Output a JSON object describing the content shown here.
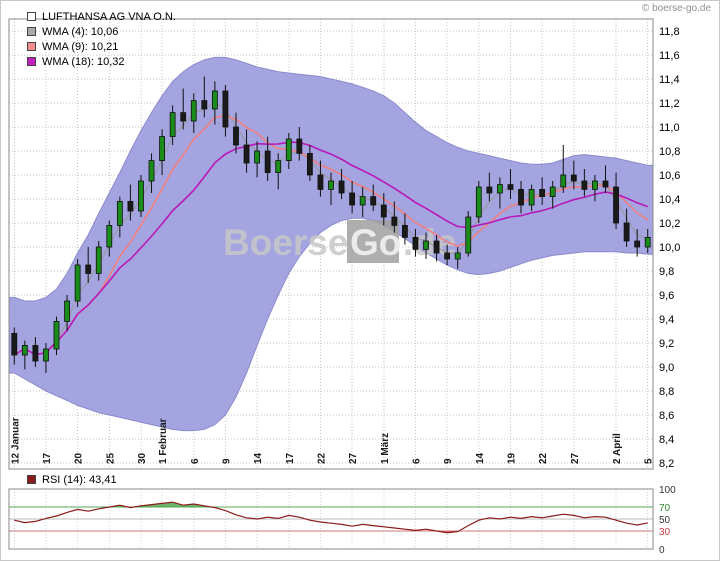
{
  "header": {
    "copyright": "© boerse-go.de"
  },
  "legend": {
    "title": "LUFTHANSA AG VNA O.N.",
    "items": [
      {
        "label": "WMA (4): 10,06",
        "color": "#a8a8a8"
      },
      {
        "label": "WMA (9): 10,21",
        "color": "#f28e8e"
      },
      {
        "label": "WMA (18): 10,32",
        "color": "#c020c0"
      }
    ]
  },
  "rsi_legend": {
    "label": "RSI (14): 43,41",
    "color": "#8b1a1a"
  },
  "watermark": {
    "pre": "Boerse",
    "box": "Go",
    "post": ".de"
  },
  "chart_data": [
    {
      "type": "candlestick",
      "title": "LUFTHANSA AG VNA O.N.",
      "ylim": [
        8.2,
        11.8
      ],
      "ytick_step": 0.2,
      "ytick_labels": [
        "11,8",
        "11,6",
        "11,4",
        "11,2",
        "11,0",
        "10,8",
        "10,6",
        "10,4",
        "10,2",
        "10,0",
        "9,8",
        "9,6",
        "9,4",
        "9,2",
        "9,0",
        "8,8",
        "8,6",
        "8,4",
        "8,2"
      ],
      "xticks": [
        {
          "i": 0,
          "label": "12 Januar"
        },
        {
          "i": 3,
          "label": "17"
        },
        {
          "i": 6,
          "label": "20"
        },
        {
          "i": 9,
          "label": "25"
        },
        {
          "i": 12,
          "label": "30"
        },
        {
          "i": 14,
          "label": "1 Februar"
        },
        {
          "i": 17,
          "label": "6"
        },
        {
          "i": 20,
          "label": "9"
        },
        {
          "i": 23,
          "label": "14"
        },
        {
          "i": 26,
          "label": "17"
        },
        {
          "i": 29,
          "label": "22"
        },
        {
          "i": 32,
          "label": "27"
        },
        {
          "i": 35,
          "label": "1 März"
        },
        {
          "i": 38,
          "label": "6"
        },
        {
          "i": 41,
          "label": "9"
        },
        {
          "i": 44,
          "label": "14"
        },
        {
          "i": 47,
          "label": "19"
        },
        {
          "i": 50,
          "label": "22"
        },
        {
          "i": 53,
          "label": "27"
        },
        {
          "i": 57,
          "label": "2 April"
        },
        {
          "i": 60,
          "label": "5"
        }
      ],
      "colors": {
        "up": "#1a8c1a",
        "down": "#1a1a1a"
      },
      "band": {
        "color": "#9a9ade",
        "edge": "#8a8ace",
        "upper": [
          9.58,
          9.55,
          9.55,
          9.58,
          9.65,
          9.78,
          9.95,
          10.1,
          10.28,
          10.45,
          10.62,
          10.8,
          10.97,
          11.12,
          11.26,
          11.38,
          11.46,
          11.52,
          11.56,
          11.58,
          11.58,
          11.56,
          11.53,
          11.5,
          11.48,
          11.46,
          11.45,
          11.44,
          11.43,
          11.42,
          11.4,
          11.38,
          11.36,
          11.33,
          11.3,
          11.26,
          11.2,
          11.12,
          11.04,
          10.97,
          10.92,
          10.87,
          10.83,
          10.8,
          10.78,
          10.76,
          10.74,
          10.72,
          10.7,
          10.69,
          10.69,
          10.7,
          10.73,
          10.76,
          10.77,
          10.76,
          10.75,
          10.74,
          10.72,
          10.7,
          10.68
        ],
        "lower": [
          8.95,
          8.9,
          8.85,
          8.8,
          8.76,
          8.72,
          8.68,
          8.65,
          8.62,
          8.6,
          8.58,
          8.56,
          8.54,
          8.52,
          8.5,
          8.48,
          8.47,
          8.47,
          8.48,
          8.52,
          8.6,
          8.75,
          8.95,
          9.18,
          9.4,
          9.6,
          9.78,
          9.92,
          10.03,
          10.12,
          10.18,
          10.22,
          10.24,
          10.24,
          10.22,
          10.18,
          10.13,
          10.07,
          10.01,
          9.95,
          9.9,
          9.85,
          9.81,
          9.78,
          9.77,
          9.78,
          9.8,
          9.83,
          9.86,
          9.89,
          9.91,
          9.93,
          9.94,
          9.95,
          9.96,
          9.96,
          9.96,
          9.96,
          9.95,
          9.95,
          9.94
        ]
      },
      "overlays": [
        {
          "name": "WMA (4)",
          "period": 4,
          "value": 10.06,
          "color": "#9a9a9a",
          "width": 1.1
        },
        {
          "name": "WMA (9)",
          "period": 9,
          "value": 10.21,
          "color": "#f08080",
          "width": 1.6
        },
        {
          "name": "WMA (18)",
          "period": 18,
          "value": 10.32,
          "color": "#b818b8",
          "width": 1.6
        }
      ],
      "candles": [
        {
          "d": "12.01",
          "o": 9.28,
          "h": 9.33,
          "l": 9.02,
          "c": 9.1
        },
        {
          "d": "13.01",
          "o": 9.1,
          "h": 9.22,
          "l": 8.98,
          "c": 9.18
        },
        {
          "d": "16.01",
          "o": 9.18,
          "h": 9.25,
          "l": 9.0,
          "c": 9.05
        },
        {
          "d": "17.01",
          "o": 9.05,
          "h": 9.2,
          "l": 8.95,
          "c": 9.15
        },
        {
          "d": "18.01",
          "o": 9.15,
          "h": 9.42,
          "l": 9.1,
          "c": 9.38
        },
        {
          "d": "19.01",
          "o": 9.38,
          "h": 9.6,
          "l": 9.3,
          "c": 9.55
        },
        {
          "d": "20.01",
          "o": 9.55,
          "h": 9.9,
          "l": 9.5,
          "c": 9.85
        },
        {
          "d": "23.01",
          "o": 9.85,
          "h": 10.0,
          "l": 9.7,
          "c": 9.78
        },
        {
          "d": "24.01",
          "o": 9.78,
          "h": 10.05,
          "l": 9.72,
          "c": 10.0
        },
        {
          "d": "25.01",
          "o": 10.0,
          "h": 10.22,
          "l": 9.92,
          "c": 10.18
        },
        {
          "d": "26.01",
          "o": 10.18,
          "h": 10.42,
          "l": 10.08,
          "c": 10.38
        },
        {
          "d": "27.01",
          "o": 10.38,
          "h": 10.52,
          "l": 10.22,
          "c": 10.3
        },
        {
          "d": "30.01",
          "o": 10.3,
          "h": 10.6,
          "l": 10.25,
          "c": 10.55
        },
        {
          "d": "31.01",
          "o": 10.55,
          "h": 10.78,
          "l": 10.45,
          "c": 10.72
        },
        {
          "d": "01.02",
          "o": 10.72,
          "h": 10.98,
          "l": 10.6,
          "c": 10.92
        },
        {
          "d": "02.02",
          "o": 10.92,
          "h": 11.18,
          "l": 10.85,
          "c": 11.12
        },
        {
          "d": "03.02",
          "o": 11.12,
          "h": 11.32,
          "l": 10.98,
          "c": 11.05
        },
        {
          "d": "06.02",
          "o": 11.05,
          "h": 11.28,
          "l": 10.95,
          "c": 11.22
        },
        {
          "d": "07.02",
          "o": 11.22,
          "h": 11.42,
          "l": 11.08,
          "c": 11.15
        },
        {
          "d": "08.02",
          "o": 11.15,
          "h": 11.38,
          "l": 11.02,
          "c": 11.3
        },
        {
          "d": "09.02",
          "o": 11.3,
          "h": 11.35,
          "l": 10.92,
          "c": 11.0
        },
        {
          "d": "10.02",
          "o": 11.0,
          "h": 11.12,
          "l": 10.78,
          "c": 10.85
        },
        {
          "d": "13.02",
          "o": 10.85,
          "h": 10.98,
          "l": 10.62,
          "c": 10.7
        },
        {
          "d": "14.02",
          "o": 10.7,
          "h": 10.88,
          "l": 10.58,
          "c": 10.8
        },
        {
          "d": "15.02",
          "o": 10.8,
          "h": 10.92,
          "l": 10.55,
          "c": 10.62
        },
        {
          "d": "16.02",
          "o": 10.62,
          "h": 10.78,
          "l": 10.48,
          "c": 10.72
        },
        {
          "d": "17.02",
          "o": 10.72,
          "h": 10.95,
          "l": 10.65,
          "c": 10.9
        },
        {
          "d": "20.02",
          "o": 10.9,
          "h": 11.0,
          "l": 10.72,
          "c": 10.78
        },
        {
          "d": "21.02",
          "o": 10.78,
          "h": 10.85,
          "l": 10.55,
          "c": 10.6
        },
        {
          "d": "22.02",
          "o": 10.6,
          "h": 10.72,
          "l": 10.42,
          "c": 10.48
        },
        {
          "d": "23.02",
          "o": 10.48,
          "h": 10.62,
          "l": 10.35,
          "c": 10.55
        },
        {
          "d": "24.02",
          "o": 10.55,
          "h": 10.65,
          "l": 10.4,
          "c": 10.45
        },
        {
          "d": "27.02",
          "o": 10.45,
          "h": 10.55,
          "l": 10.28,
          "c": 10.35
        },
        {
          "d": "28.02",
          "o": 10.35,
          "h": 10.5,
          "l": 10.25,
          "c": 10.42
        },
        {
          "d": "29.02",
          "o": 10.42,
          "h": 10.52,
          "l": 10.3,
          "c": 10.35
        },
        {
          "d": "01.03",
          "o": 10.35,
          "h": 10.45,
          "l": 10.18,
          "c": 10.25
        },
        {
          "d": "02.03",
          "o": 10.25,
          "h": 10.38,
          "l": 10.12,
          "c": 10.18
        },
        {
          "d": "05.03",
          "o": 10.18,
          "h": 10.28,
          "l": 10.02,
          "c": 10.08
        },
        {
          "d": "06.03",
          "o": 10.08,
          "h": 10.15,
          "l": 9.92,
          "c": 9.98
        },
        {
          "d": "07.03",
          "o": 9.98,
          "h": 10.12,
          "l": 9.9,
          "c": 10.05
        },
        {
          "d": "08.03",
          "o": 10.05,
          "h": 10.1,
          "l": 9.88,
          "c": 9.95
        },
        {
          "d": "09.03",
          "o": 9.95,
          "h": 10.02,
          "l": 9.85,
          "c": 9.9
        },
        {
          "d": "12.03",
          "o": 9.9,
          "h": 10.0,
          "l": 9.82,
          "c": 9.95
        },
        {
          "d": "13.03",
          "o": 9.95,
          "h": 10.3,
          "l": 9.92,
          "c": 10.25
        },
        {
          "d": "14.03",
          "o": 10.25,
          "h": 10.55,
          "l": 10.2,
          "c": 10.5
        },
        {
          "d": "15.03",
          "o": 10.5,
          "h": 10.62,
          "l": 10.38,
          "c": 10.45
        },
        {
          "d": "16.03",
          "o": 10.45,
          "h": 10.58,
          "l": 10.32,
          "c": 10.52
        },
        {
          "d": "19.03",
          "o": 10.52,
          "h": 10.65,
          "l": 10.4,
          "c": 10.48
        },
        {
          "d": "20.03",
          "o": 10.48,
          "h": 10.55,
          "l": 10.28,
          "c": 10.35
        },
        {
          "d": "21.03",
          "o": 10.35,
          "h": 10.52,
          "l": 10.3,
          "c": 10.48
        },
        {
          "d": "22.03",
          "o": 10.48,
          "h": 10.58,
          "l": 10.35,
          "c": 10.42
        },
        {
          "d": "23.03",
          "o": 10.42,
          "h": 10.55,
          "l": 10.32,
          "c": 10.5
        },
        {
          "d": "26.03",
          "o": 10.5,
          "h": 10.85,
          "l": 10.45,
          "c": 10.6
        },
        {
          "d": "27.03",
          "o": 10.6,
          "h": 10.72,
          "l": 10.48,
          "c": 10.55
        },
        {
          "d": "28.03",
          "o": 10.55,
          "h": 10.65,
          "l": 10.42,
          "c": 10.48
        },
        {
          "d": "29.03",
          "o": 10.48,
          "h": 10.6,
          "l": 10.38,
          "c": 10.55
        },
        {
          "d": "30.03",
          "o": 10.55,
          "h": 10.68,
          "l": 10.45,
          "c": 10.5
        },
        {
          "d": "02.04",
          "o": 10.5,
          "h": 10.62,
          "l": 10.15,
          "c": 10.2
        },
        {
          "d": "03.04",
          "o": 10.2,
          "h": 10.32,
          "l": 10.0,
          "c": 10.05
        },
        {
          "d": "04.04",
          "o": 10.05,
          "h": 10.15,
          "l": 9.92,
          "c": 10.0
        },
        {
          "d": "05.04",
          "o": 10.0,
          "h": 10.15,
          "l": 9.95,
          "c": 10.08
        }
      ]
    },
    {
      "type": "line",
      "name": "RSI (14)",
      "last_value": 43.41,
      "ylim": [
        0,
        100
      ],
      "color": "#8b1a1a",
      "fill_above": "#3f9e3f",
      "fill_below": "#c04545",
      "levels": [
        {
          "value": 70,
          "color": "#55aa55"
        },
        {
          "value": 50,
          "color": "#bbbbbb"
        },
        {
          "value": 30,
          "color": "#cc7777"
        }
      ],
      "yticks": [
        {
          "v": 100,
          "label": "100",
          "color": "#333333"
        },
        {
          "v": 70,
          "label": "70",
          "color": "#2e8b2e"
        },
        {
          "v": 50,
          "label": "50",
          "color": "#333333"
        },
        {
          "v": 30,
          "label": "30",
          "color": "#c04040"
        },
        {
          "v": 0,
          "label": "0",
          "color": "#333333"
        }
      ],
      "values": [
        48,
        44,
        46,
        51,
        55,
        61,
        66,
        63,
        67,
        70,
        73,
        69,
        72,
        74,
        76,
        78,
        73,
        75,
        72,
        69,
        64,
        57,
        52,
        50,
        53,
        51,
        56,
        53,
        48,
        45,
        43,
        41,
        38,
        41,
        39,
        37,
        35,
        33,
        31,
        33,
        30,
        27,
        29,
        39,
        48,
        52,
        50,
        53,
        51,
        54,
        52,
        55,
        58,
        56,
        52,
        54,
        53,
        48,
        43,
        40,
        43.41
      ]
    }
  ]
}
